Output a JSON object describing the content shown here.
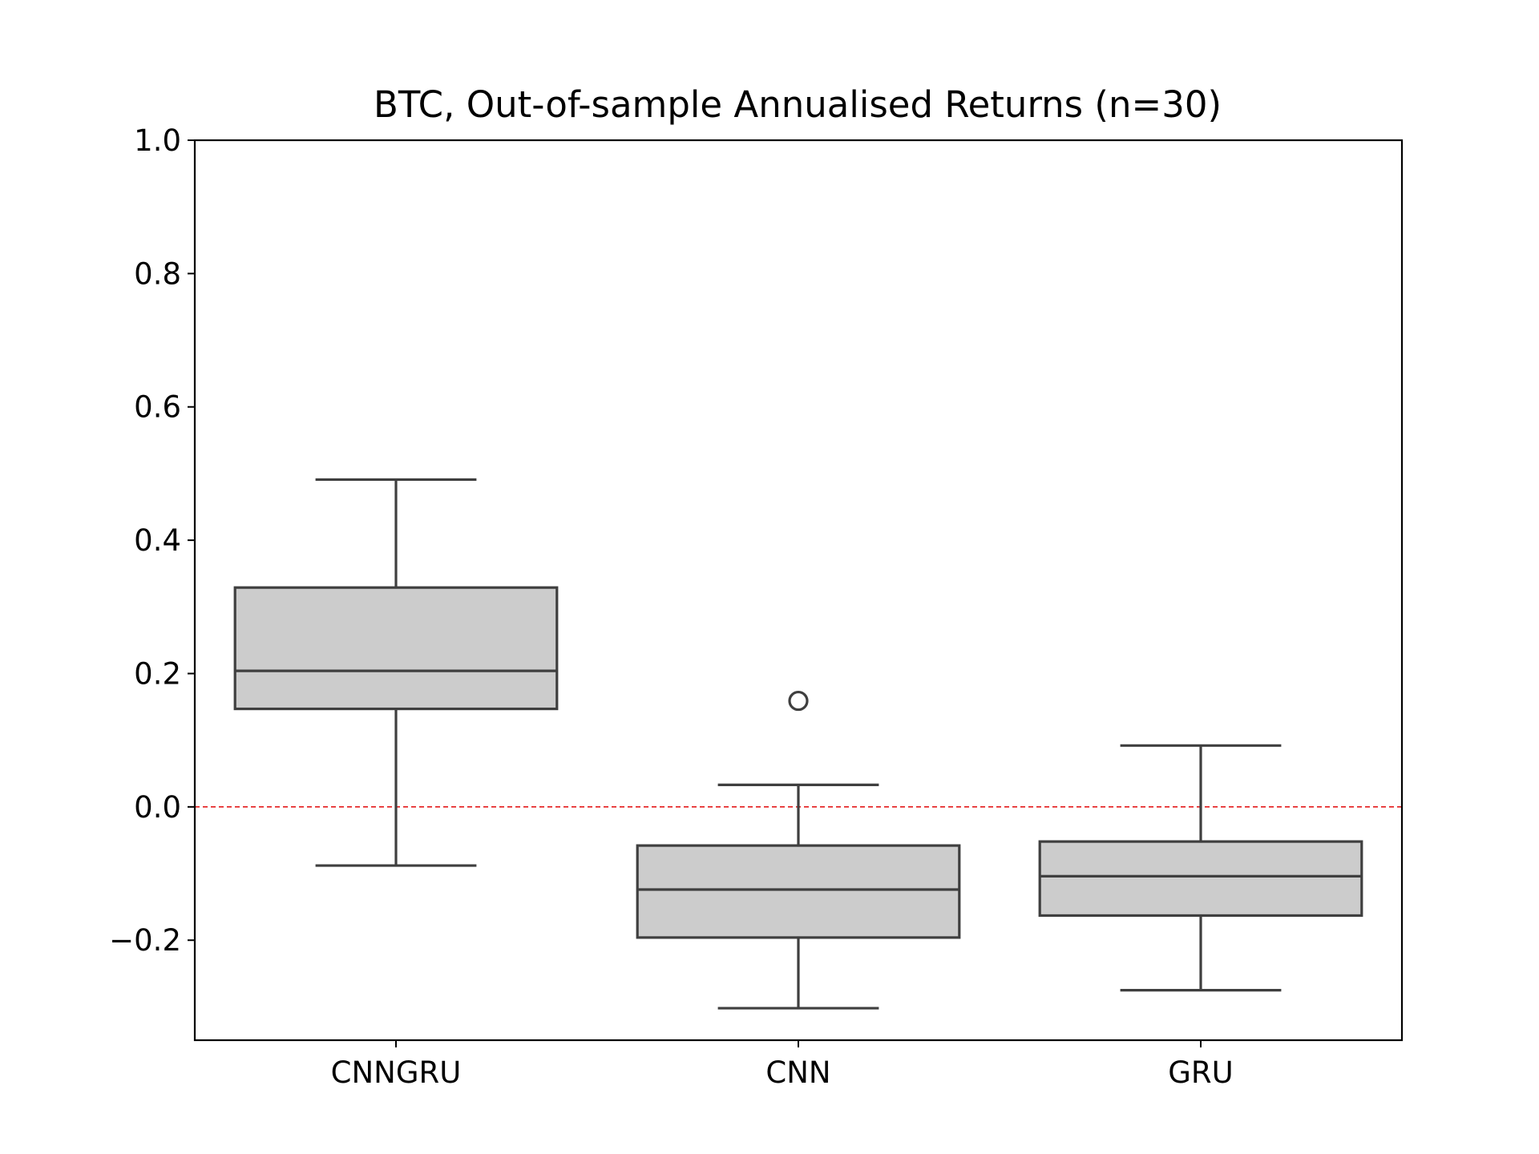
{
  "chart_data": {
    "type": "box",
    "title": "BTC, Out-of-sample Annualised Returns (n=30)",
    "xlabel": "",
    "ylabel": "",
    "ylim": [
      -0.35,
      1.0
    ],
    "yticks": [
      -0.2,
      0.0,
      0.2,
      0.4,
      0.6,
      0.8,
      1.0
    ],
    "ytick_labels": [
      "−0.2",
      "0.0",
      "0.2",
      "0.4",
      "0.6",
      "0.8",
      "1.0"
    ],
    "categories": [
      "CNNGRU",
      "CNN",
      "GRU"
    ],
    "boxes": [
      {
        "category": "CNNGRU",
        "whisker_low": -0.088,
        "q1": 0.147,
        "median": 0.204,
        "q3": 0.329,
        "whisker_high": 0.491,
        "outliers": []
      },
      {
        "category": "CNN",
        "whisker_low": -0.302,
        "q1": -0.196,
        "median": -0.124,
        "q3": -0.058,
        "whisker_high": 0.033,
        "outliers": [
          0.159
        ]
      },
      {
        "category": "GRU",
        "whisker_low": -0.275,
        "q1": -0.163,
        "median": -0.104,
        "q3": -0.052,
        "whisker_high": 0.092,
        "outliers": []
      }
    ],
    "reference_line": {
      "y": 0.0,
      "color": "#e31a1c",
      "style": "dashed"
    },
    "colors": {
      "box_fill": "#cccccc",
      "box_edge": "#3f3f3f",
      "axis": "#000000"
    },
    "grid": false,
    "legend": "none"
  }
}
